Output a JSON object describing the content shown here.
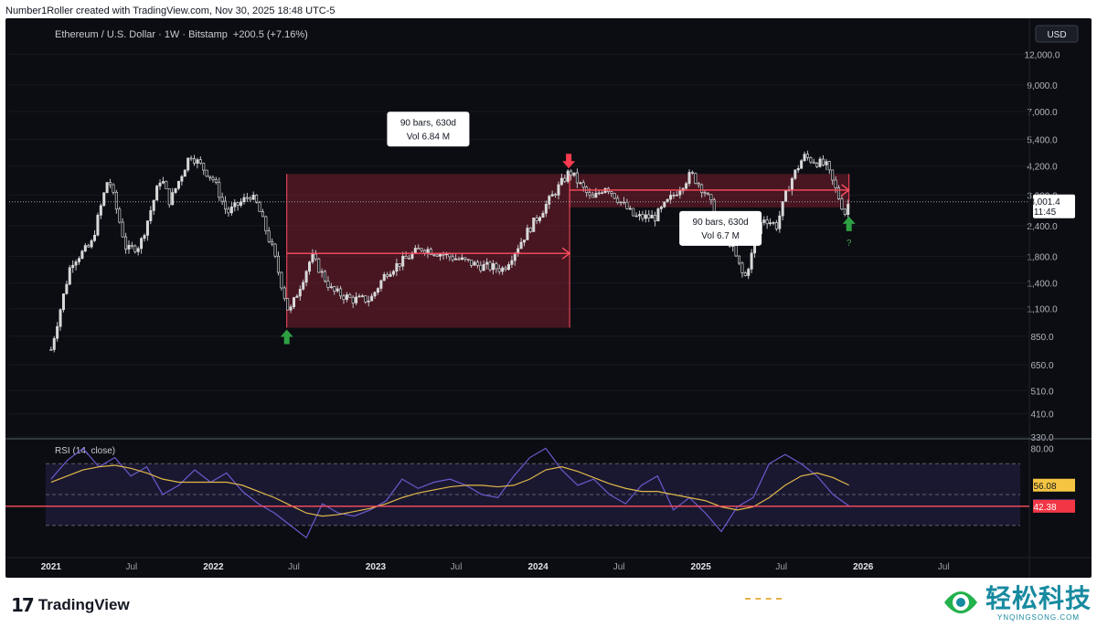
{
  "credit": "Number1Roller created with TradingView.com, Nov 30, 2025 18:48 UTC-5",
  "header": {
    "symbol": "Ethereum / U.S. Dollar · 1W · Bitstamp",
    "change": "+200.5 (+7.16%)"
  },
  "currency": "USD",
  "colors": {
    "bg": "#0b0d12",
    "up": "#d9d9d9",
    "box": "#7a1f2e",
    "red_line": "#ff4d5e",
    "arrow_green": "#2ea043",
    "arrow_red": "#ff3b4f",
    "rsi": "#6a5acd",
    "rsi_ma": "#e0b84a"
  },
  "chart_data": {
    "type": "line",
    "title": "Ethereum / U.S. Dollar · 1W · Bitstamp",
    "scale": "log",
    "ylim": [
      330,
      13000
    ],
    "xlim": [
      "2020-12-20",
      "2026-12-20"
    ],
    "price_ticks": [
      "12,000.0",
      "9,000.0",
      "7,000.0",
      "5,400.0",
      "4,200.0",
      "3,200.0",
      "2,400.0",
      "1,800.0",
      "1,400.0",
      "1,100.0",
      "850.0",
      "650.0",
      "510.0",
      "410.0",
      "330.0"
    ],
    "x_ticks": [
      "2021",
      "Jul",
      "2022",
      "Jul",
      "2023",
      "Jul",
      "2024",
      "Jul",
      "2025",
      "Jul",
      "2026",
      "Jul"
    ],
    "x_tick_dates": [
      "2021-01-01",
      "2021-07-01",
      "2022-01-01",
      "2022-07-01",
      "2023-01-01",
      "2023-07-01",
      "2024-01-01",
      "2024-07-01",
      "2025-01-01",
      "2025-07-01",
      "2026-01-01",
      "2026-07-01"
    ],
    "series": [
      {
        "x": [
          "2021-01-01",
          "2021-02-15",
          "2021-04-01",
          "2021-05-10",
          "2021-06-20",
          "2021-07-20",
          "2021-09-05",
          "2021-09-25",
          "2021-11-10",
          "2022-01-01",
          "2022-02-01",
          "2022-03-25",
          "2022-04-10",
          "2022-05-15",
          "2022-06-20",
          "2022-08-10",
          "2022-09-25",
          "2022-11-10",
          "2022-12-20",
          "2023-01-25",
          "2023-04-15",
          "2023-06-15",
          "2023-08-20",
          "2023-10-15",
          "2023-12-10",
          "2024-03-12",
          "2024-05-01",
          "2024-06-01",
          "2024-08-05",
          "2024-09-20",
          "2024-12-10",
          "2025-01-10",
          "2025-03-10",
          "2025-04-09",
          "2025-05-20",
          "2025-06-20",
          "2025-07-20",
          "2025-08-20",
          "2025-10-10",
          "2025-11-21",
          "2025-11-30"
        ],
        "values": [
          750,
          1700,
          2000,
          3800,
          1900,
          2000,
          3800,
          3000,
          4700,
          3700,
          2700,
          3200,
          2900,
          1900,
          1050,
          1800,
          1300,
          1200,
          1200,
          1550,
          1950,
          1800,
          1650,
          1600,
          2300,
          4000,
          3050,
          3500,
          2600,
          2600,
          3900,
          3300,
          2000,
          1450,
          2600,
          2400,
          3600,
          4600,
          4200,
          2700,
          3001.4
        ]
      }
    ],
    "annotations": [
      {
        "label": "90 bars, 630d",
        "vol": "Vol 6.84 M",
        "from": "2022-06-15",
        "to": "2024-03-12",
        "top": 3900,
        "bottom": 920,
        "mid": 1850
      },
      {
        "label": "90 bars, 630d",
        "vol": "Vol 6.7 M",
        "from": "2024-03-12",
        "to": "2025-11-30",
        "top": 3900,
        "bottom": 2850,
        "mid": 3350
      }
    ],
    "question_mark": "?",
    "last_price": {
      "value": "3,001.4",
      "countdown": "11:45"
    },
    "rsi": {
      "title": "RSI (14, close)",
      "ticks": [
        "80.00"
      ],
      "levels": [
        70,
        50,
        30
      ],
      "value": "42.60",
      "ma_value": "56.08",
      "line_value": "42.38",
      "values": [
        60,
        72,
        80,
        68,
        74,
        62,
        68,
        50,
        56,
        66,
        58,
        64,
        52,
        44,
        38,
        30,
        22,
        44,
        38,
        36,
        40,
        46,
        60,
        54,
        58,
        60,
        56,
        50,
        48,
        62,
        74,
        80,
        66,
        56,
        60,
        50,
        44,
        56,
        62,
        40,
        48,
        38,
        26,
        42,
        48,
        70,
        76,
        70,
        62,
        50,
        42.6
      ],
      "ma": [
        58,
        62,
        66,
        68,
        69,
        67,
        64,
        60,
        58,
        58,
        58,
        58,
        56,
        52,
        48,
        43,
        38,
        36,
        37,
        39,
        41,
        44,
        48,
        51,
        53,
        55,
        56,
        56,
        55,
        56,
        60,
        66,
        68,
        65,
        61,
        57,
        54,
        52,
        52,
        50,
        48,
        46,
        42,
        40,
        42,
        48,
        56,
        62,
        64,
        61,
        56.08
      ]
    }
  },
  "footer": {
    "brand": "TradingView",
    "watermark_cn": "轻松科技",
    "watermark_en": "YNQINGSONG.COM"
  }
}
